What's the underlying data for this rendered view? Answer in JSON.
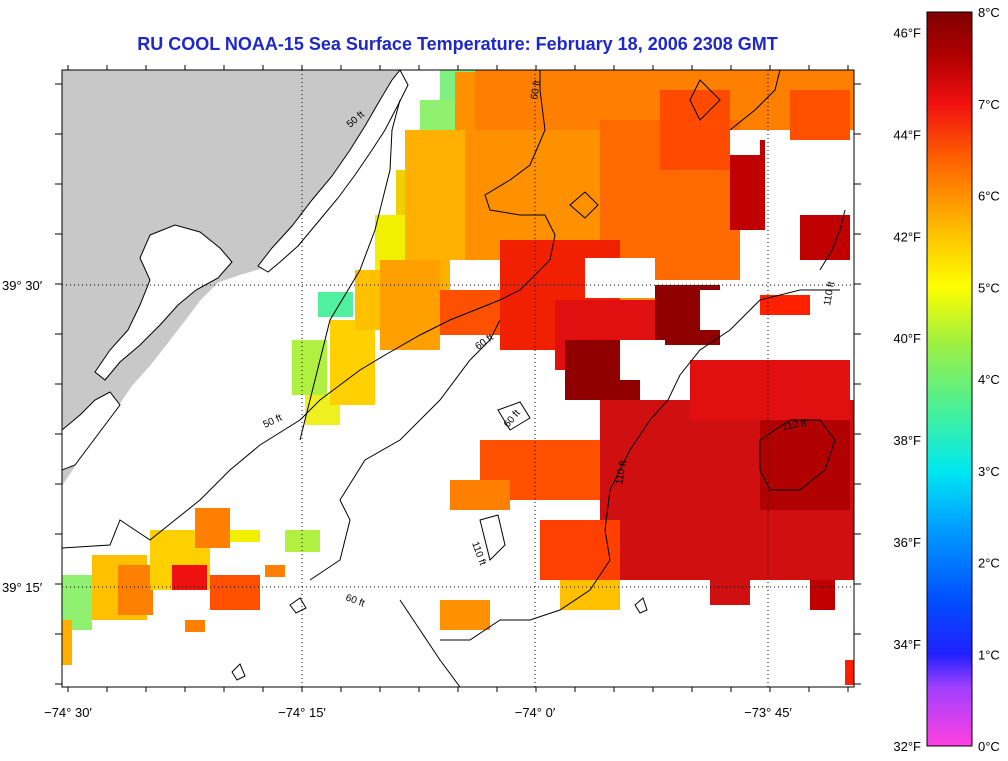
{
  "title": "RU COOL  NOAA-15  Sea Surface Temperature:  February 18, 2006 2308 GMT",
  "map": {
    "x_ticks": [
      "−74° 30′",
      "−74° 15′",
      "−74° 0′",
      "−73° 45′"
    ],
    "y_ticks": [
      "39° 30′",
      "39° 15′"
    ],
    "contour_labels": [
      "50 ft",
      "50 ft",
      "60 ft",
      "60 ft",
      "60 ft",
      "60 ft",
      "110 ft",
      "110 ft",
      "110 ft",
      "110 ft"
    ],
    "colors": {
      "land": "#c8c8c8",
      "no_data": "#ffffff",
      "contour": "#000000"
    }
  },
  "colorbar": {
    "fahrenheit": [
      "46°F",
      "44°F",
      "42°F",
      "40°F",
      "38°F",
      "36°F",
      "34°F",
      "32°F"
    ],
    "celsius": [
      "8°C",
      "7°C",
      "6°C",
      "5°C",
      "4°C",
      "3°C",
      "2°C",
      "1°C",
      "0°C"
    ],
    "range_c": [
      0,
      8
    ],
    "gradient": [
      "#ff40e0",
      "#a040ff",
      "#2020ff",
      "#0050ff",
      "#00a0ff",
      "#00e8f0",
      "#40f0a0",
      "#a0f040",
      "#ffff00",
      "#ffc000",
      "#ff8000",
      "#ff4000",
      "#f01010",
      "#b00000",
      "#800000"
    ]
  }
}
